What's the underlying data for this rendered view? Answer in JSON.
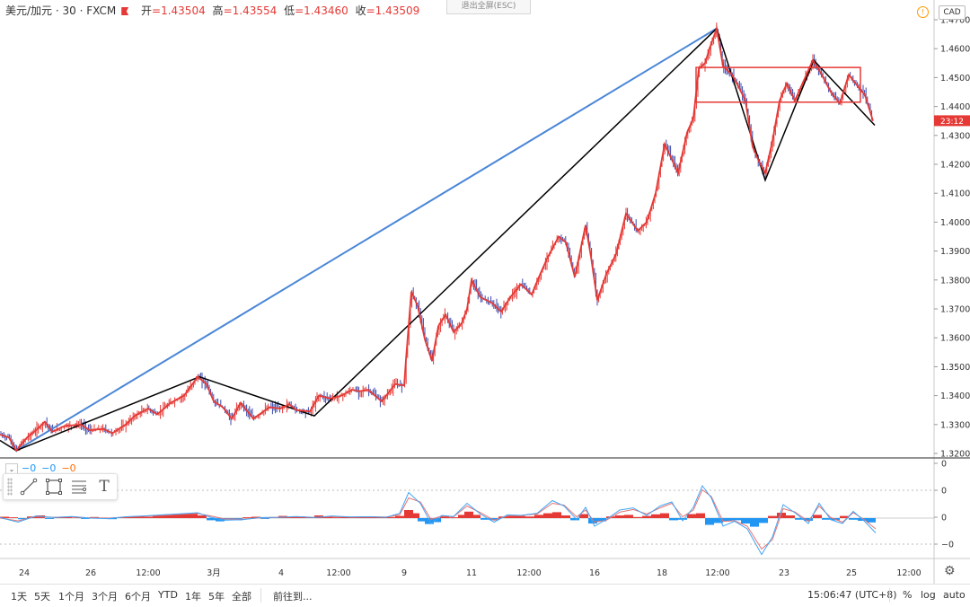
{
  "header": {
    "symbol": "美元/加元 · 30 · FXCM",
    "open_label": "开",
    "open_value": "=1.43504",
    "high_label": "高",
    "high_value": "=1.43554",
    "low_label": "低",
    "low_value": "=1.43460",
    "close_label": "收",
    "close_value": "=1.43509",
    "exit_fullscreen": "退出全屏(ESC)",
    "currency": "CAD",
    "warning": "!"
  },
  "price_tag": "23:12",
  "indicator": {
    "v1": "−0",
    "v2": "−0",
    "v3": "−0"
  },
  "drawing_tools": [
    "line-tool-icon",
    "rectangle-tool-icon",
    "fib-tool-icon",
    "text-tool-icon"
  ],
  "text_tool_glyph": "T",
  "bottom": {
    "ranges": [
      "1天",
      "5天",
      "1个月",
      "3个月",
      "6个月",
      "YTD",
      "1年",
      "5年",
      "全部"
    ],
    "goto": "前往到...",
    "clock": "15:06:47 (UTC+8)",
    "percent": "%",
    "log": "log",
    "auto": "auto"
  },
  "colors": {
    "up": "#e53935",
    "down": "#3949ab",
    "blue_line": "#4a86d8",
    "zigzag_black": "#000000"
  },
  "chart_data": {
    "type": "line",
    "symbol": "USDCAD",
    "timeframe": "30",
    "x_ticks": [
      "24",
      "26",
      "12:00",
      "3月",
      "4",
      "12:00",
      "9",
      "11",
      "12:00",
      "16",
      "18",
      "12:00",
      "23",
      "25",
      "12:00"
    ],
    "y_ticks": [
      "1.47000",
      "1.46000",
      "1.45000",
      "1.44000",
      "1.43000",
      "1.42000",
      "1.41000",
      "1.40000",
      "1.39000",
      "1.38000",
      "1.37000",
      "1.36000",
      "1.35000",
      "1.34000",
      "1.33000",
      "1.32000"
    ],
    "ylim": [
      1.32,
      1.47
    ],
    "last_price": 1.43509,
    "price_path": [
      [
        0,
        1.3265
      ],
      [
        10,
        1.3255
      ],
      [
        18,
        1.321
      ],
      [
        30,
        1.3255
      ],
      [
        40,
        1.328
      ],
      [
        50,
        1.331
      ],
      [
        58,
        1.3275
      ],
      [
        72,
        1.3295
      ],
      [
        90,
        1.33
      ],
      [
        100,
        1.328
      ],
      [
        115,
        1.3285
      ],
      [
        125,
        1.327
      ],
      [
        140,
        1.33
      ],
      [
        150,
        1.333
      ],
      [
        165,
        1.3355
      ],
      [
        175,
        1.3335
      ],
      [
        190,
        1.3375
      ],
      [
        205,
        1.34
      ],
      [
        220,
        1.3465
      ],
      [
        230,
        1.344
      ],
      [
        238,
        1.338
      ],
      [
        248,
        1.336
      ],
      [
        258,
        1.332
      ],
      [
        268,
        1.3375
      ],
      [
        282,
        1.332
      ],
      [
        300,
        1.336
      ],
      [
        312,
        1.3355
      ],
      [
        322,
        1.337
      ],
      [
        330,
        1.335
      ],
      [
        345,
        1.3345
      ],
      [
        355,
        1.34
      ],
      [
        368,
        1.339
      ],
      [
        380,
        1.34
      ],
      [
        392,
        1.342
      ],
      [
        400,
        1.3415
      ],
      [
        410,
        1.342
      ],
      [
        425,
        1.338
      ],
      [
        440,
        1.344
      ],
      [
        450,
        1.3435
      ],
      [
        452,
        1.3525
      ],
      [
        458,
        1.376
      ],
      [
        465,
        1.371
      ],
      [
        473,
        1.3595
      ],
      [
        481,
        1.352
      ],
      [
        488,
        1.364
      ],
      [
        496,
        1.368
      ],
      [
        505,
        1.362
      ],
      [
        514,
        1.365
      ],
      [
        520,
        1.37
      ],
      [
        525,
        1.38
      ],
      [
        535,
        1.374
      ],
      [
        548,
        1.372
      ],
      [
        558,
        1.369
      ],
      [
        568,
        1.374
      ],
      [
        580,
        1.3785
      ],
      [
        592,
        1.375
      ],
      [
        600,
        1.381
      ],
      [
        610,
        1.388
      ],
      [
        622,
        1.395
      ],
      [
        630,
        1.393
      ],
      [
        640,
        1.381
      ],
      [
        652,
        1.399
      ],
      [
        658,
        1.388
      ],
      [
        665,
        1.373
      ],
      [
        675,
        1.382
      ],
      [
        686,
        1.389
      ],
      [
        697,
        1.403
      ],
      [
        710,
        1.397
      ],
      [
        720,
        1.4
      ],
      [
        730,
        1.41
      ],
      [
        740,
        1.427
      ],
      [
        755,
        1.417
      ],
      [
        765,
        1.431
      ],
      [
        772,
        1.436
      ],
      [
        778,
        1.453
      ],
      [
        785,
        1.455
      ],
      [
        790,
        1.46
      ],
      [
        798,
        1.467
      ],
      [
        805,
        1.454
      ],
      [
        815,
        1.451
      ],
      [
        822,
        1.447
      ],
      [
        830,
        1.442
      ],
      [
        838,
        1.426
      ],
      [
        845,
        1.421
      ],
      [
        852,
        1.417
      ],
      [
        860,
        1.428
      ],
      [
        868,
        1.442
      ],
      [
        876,
        1.448
      ],
      [
        885,
        1.442
      ],
      [
        895,
        1.449
      ],
      [
        905,
        1.456
      ],
      [
        915,
        1.451
      ],
      [
        925,
        1.445
      ],
      [
        935,
        1.441
      ],
      [
        945,
        1.451
      ],
      [
        955,
        1.447
      ],
      [
        963,
        1.444
      ],
      [
        972,
        1.435
      ]
    ],
    "zigzag_black": [
      [
        0,
        1.3245
      ],
      [
        18,
        1.321
      ],
      [
        222,
        1.3465
      ],
      [
        350,
        1.333
      ],
      [
        798,
        1.467
      ],
      [
        852,
        1.4145
      ],
      [
        906,
        1.456
      ],
      [
        974,
        1.4335
      ]
    ],
    "trend_blue": [
      [
        18,
        1.321
      ],
      [
        798,
        1.467
      ]
    ],
    "range_box": {
      "x0": 775,
      "x1": 958,
      "y_high": 1.4535,
      "y_low": 1.4415
    },
    "indicator_ticks": [
      "0",
      "0",
      "0",
      "−0"
    ],
    "histogram": [
      [
        5,
        0.5
      ],
      [
        15,
        0.3
      ],
      [
        25,
        -0.4
      ],
      [
        35,
        0.6
      ],
      [
        45,
        1.0
      ],
      [
        55,
        -0.3
      ],
      [
        65,
        0.4
      ],
      [
        75,
        0.5
      ],
      [
        85,
        0.2
      ],
      [
        95,
        -0.3
      ],
      [
        105,
        0.4
      ],
      [
        115,
        0.2
      ],
      [
        125,
        -0.4
      ],
      [
        135,
        0.3
      ],
      [
        145,
        0.6
      ],
      [
        155,
        0.8
      ],
      [
        165,
        0.5
      ],
      [
        175,
        0.9
      ],
      [
        185,
        1.1
      ],
      [
        195,
        1.3
      ],
      [
        205,
        1.5
      ],
      [
        215,
        1.7
      ],
      [
        225,
        1.0
      ],
      [
        235,
        -0.8
      ],
      [
        245,
        -1.2
      ],
      [
        255,
        -0.6
      ],
      [
        265,
        -0.8
      ],
      [
        275,
        0.3
      ],
      [
        285,
        0.5
      ],
      [
        295,
        -0.3
      ],
      [
        305,
        0.4
      ],
      [
        315,
        0.8
      ],
      [
        325,
        0.5
      ],
      [
        335,
        0.6
      ],
      [
        345,
        0.2
      ],
      [
        355,
        1.0
      ],
      [
        365,
        0.6
      ],
      [
        375,
        0.3
      ],
      [
        385,
        0.5
      ],
      [
        395,
        0.3
      ],
      [
        405,
        0.4
      ],
      [
        415,
        0.6
      ],
      [
        425,
        0.3
      ],
      [
        435,
        0.4
      ],
      [
        445,
        0.8
      ],
      [
        455,
        3.0
      ],
      [
        462,
        1.8
      ],
      [
        470,
        -1.2
      ],
      [
        478,
        -2.2
      ],
      [
        486,
        -1.5
      ],
      [
        495,
        0.6
      ],
      [
        505,
        0.3
      ],
      [
        515,
        1.2
      ],
      [
        522,
        2.4
      ],
      [
        530,
        1.2
      ],
      [
        540,
        -0.6
      ],
      [
        550,
        -0.8
      ],
      [
        560,
        0.6
      ],
      [
        570,
        0.9
      ],
      [
        580,
        0.8
      ],
      [
        590,
        0.6
      ],
      [
        600,
        1.2
      ],
      [
        610,
        1.8
      ],
      [
        620,
        2.2
      ],
      [
        630,
        1.0
      ],
      [
        640,
        -0.8
      ],
      [
        650,
        1.5
      ],
      [
        660,
        -2.0
      ],
      [
        670,
        -1.2
      ],
      [
        680,
        0.6
      ],
      [
        690,
        1.0
      ],
      [
        700,
        1.2
      ],
      [
        710,
        0.4
      ],
      [
        720,
        0.8
      ],
      [
        730,
        1.4
      ],
      [
        740,
        1.8
      ],
      [
        750,
        -0.8
      ],
      [
        760,
        -0.6
      ],
      [
        770,
        1.5
      ],
      [
        780,
        1.8
      ],
      [
        790,
        -2.5
      ],
      [
        800,
        -1.8
      ],
      [
        810,
        -1.0
      ],
      [
        820,
        -0.8
      ],
      [
        830,
        -2.0
      ],
      [
        840,
        -3.2
      ],
      [
        850,
        -1.8
      ],
      [
        860,
        0.8
      ],
      [
        870,
        2.0
      ],
      [
        880,
        1.0
      ],
      [
        890,
        -0.6
      ],
      [
        900,
        -1.0
      ],
      [
        910,
        1.2
      ],
      [
        920,
        -0.6
      ],
      [
        930,
        -0.8
      ],
      [
        940,
        0.8
      ],
      [
        950,
        -0.6
      ],
      [
        960,
        -1.0
      ],
      [
        970,
        -1.6
      ]
    ],
    "macd_line": [
      [
        0,
        0.2
      ],
      [
        20,
        -1.5
      ],
      [
        40,
        0.8
      ],
      [
        60,
        0.2
      ],
      [
        80,
        0.6
      ],
      [
        100,
        0.0
      ],
      [
        120,
        -0.2
      ],
      [
        140,
        0.5
      ],
      [
        160,
        0.8
      ],
      [
        180,
        1.2
      ],
      [
        200,
        1.6
      ],
      [
        220,
        2.0
      ],
      [
        235,
        0.3
      ],
      [
        250,
        -0.8
      ],
      [
        270,
        -0.6
      ],
      [
        290,
        0.2
      ],
      [
        310,
        0.3
      ],
      [
        330,
        0.6
      ],
      [
        350,
        0.2
      ],
      [
        370,
        0.8
      ],
      [
        390,
        0.4
      ],
      [
        410,
        0.5
      ],
      [
        430,
        0.3
      ],
      [
        445,
        1.8
      ],
      [
        455,
        9.5
      ],
      [
        468,
        5.5
      ],
      [
        480,
        -2.0
      ],
      [
        492,
        1.0
      ],
      [
        505,
        0.6
      ],
      [
        520,
        5.5
      ],
      [
        535,
        1.5
      ],
      [
        550,
        -1.5
      ],
      [
        565,
        1.2
      ],
      [
        580,
        1.0
      ],
      [
        598,
        1.8
      ],
      [
        615,
        6.5
      ],
      [
        628,
        4.5
      ],
      [
        642,
        -0.5
      ],
      [
        652,
        4.0
      ],
      [
        662,
        -3.0
      ],
      [
        675,
        -0.5
      ],
      [
        690,
        3.0
      ],
      [
        705,
        3.8
      ],
      [
        720,
        1.0
      ],
      [
        735,
        4.5
      ],
      [
        748,
        6.0
      ],
      [
        760,
        -1.0
      ],
      [
        772,
        4.0
      ],
      [
        782,
        12.0
      ],
      [
        792,
        7.5
      ],
      [
        805,
        -3.0
      ],
      [
        818,
        -1.2
      ],
      [
        832,
        -4.0
      ],
      [
        848,
        -13.5
      ],
      [
        860,
        -7.0
      ],
      [
        872,
        5.0
      ],
      [
        885,
        2.0
      ],
      [
        900,
        -2.0
      ],
      [
        912,
        5.5
      ],
      [
        925,
        -0.6
      ],
      [
        938,
        -2.0
      ],
      [
        950,
        2.5
      ],
      [
        962,
        -1.0
      ],
      [
        975,
        -5.5
      ]
    ],
    "signal_line": [
      [
        0,
        0.0
      ],
      [
        20,
        -1.0
      ],
      [
        40,
        0.6
      ],
      [
        60,
        0.3
      ],
      [
        80,
        0.5
      ],
      [
        100,
        0.1
      ],
      [
        120,
        0.0
      ],
      [
        140,
        0.4
      ],
      [
        160,
        0.7
      ],
      [
        180,
        1.0
      ],
      [
        200,
        1.4
      ],
      [
        220,
        1.7
      ],
      [
        235,
        0.8
      ],
      [
        250,
        -0.3
      ],
      [
        270,
        -0.4
      ],
      [
        290,
        0.1
      ],
      [
        310,
        0.2
      ],
      [
        330,
        0.5
      ],
      [
        350,
        0.3
      ],
      [
        370,
        0.6
      ],
      [
        390,
        0.4
      ],
      [
        410,
        0.5
      ],
      [
        430,
        0.4
      ],
      [
        445,
        1.2
      ],
      [
        455,
        7.5
      ],
      [
        468,
        6.0
      ],
      [
        480,
        -0.5
      ],
      [
        492,
        0.8
      ],
      [
        505,
        0.5
      ],
      [
        520,
        4.5
      ],
      [
        535,
        2.0
      ],
      [
        550,
        -0.8
      ],
      [
        565,
        0.8
      ],
      [
        580,
        1.0
      ],
      [
        598,
        1.5
      ],
      [
        615,
        5.5
      ],
      [
        628,
        4.8
      ],
      [
        642,
        0.5
      ],
      [
        652,
        3.0
      ],
      [
        662,
        -1.5
      ],
      [
        675,
        -0.8
      ],
      [
        690,
        2.2
      ],
      [
        705,
        3.2
      ],
      [
        720,
        1.5
      ],
      [
        735,
        3.8
      ],
      [
        748,
        5.5
      ],
      [
        760,
        0.5
      ],
      [
        772,
        3.0
      ],
      [
        782,
        10.5
      ],
      [
        792,
        8.0
      ],
      [
        805,
        -1.2
      ],
      [
        818,
        -1.0
      ],
      [
        832,
        -3.0
      ],
      [
        848,
        -11.5
      ],
      [
        860,
        -8.0
      ],
      [
        872,
        3.5
      ],
      [
        885,
        2.3
      ],
      [
        900,
        -1.2
      ],
      [
        912,
        4.5
      ],
      [
        925,
        0.2
      ],
      [
        938,
        -1.5
      ],
      [
        950,
        2.0
      ],
      [
        962,
        -0.5
      ],
      [
        975,
        -4.0
      ]
    ]
  }
}
